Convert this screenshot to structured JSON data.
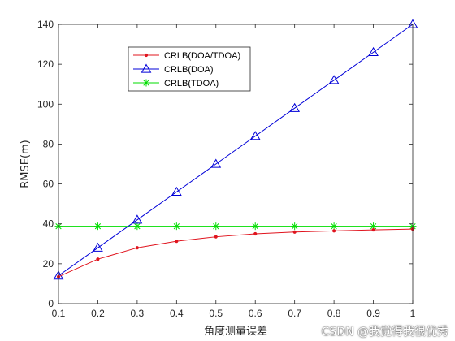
{
  "chart_data": {
    "type": "line",
    "xlabel": "角度测量误差",
    "ylabel": "RMSE(m)",
    "xlim": [
      0.1,
      1.0
    ],
    "ylim": [
      0,
      140
    ],
    "xticks": [
      "0.1",
      "0.2",
      "0.3",
      "0.4",
      "0.5",
      "0.6",
      "0.7",
      "0.8",
      "0.9",
      "1"
    ],
    "yticks": [
      "0",
      "20",
      "40",
      "60",
      "80",
      "100",
      "120",
      "140"
    ],
    "x": [
      0.1,
      0.2,
      0.3,
      0.4,
      0.5,
      0.6,
      0.7,
      0.8,
      0.9,
      1.0
    ],
    "grid": false,
    "legend_position": "upper-left",
    "series": [
      {
        "name": "CRLB(DOA/TDOA)",
        "color": "#e0141e",
        "marker": "dot",
        "values": [
          13.5,
          22.3,
          28.0,
          31.3,
          33.5,
          35.0,
          35.9,
          36.5,
          37.0,
          37.4
        ]
      },
      {
        "name": "CRLB(DOA)",
        "color": "#0000d8",
        "marker": "triangle",
        "values": [
          14.0,
          28.0,
          42.0,
          56.0,
          70.0,
          84.0,
          98.0,
          112.0,
          126.0,
          140.0
        ]
      },
      {
        "name": "CRLB(TDOA)",
        "color": "#00dd00",
        "marker": "star",
        "values": [
          38.8,
          38.8,
          38.8,
          38.8,
          38.8,
          38.8,
          38.8,
          38.8,
          38.8,
          38.8
        ]
      }
    ]
  },
  "watermark": "CSDN @我觉得我很优秀"
}
